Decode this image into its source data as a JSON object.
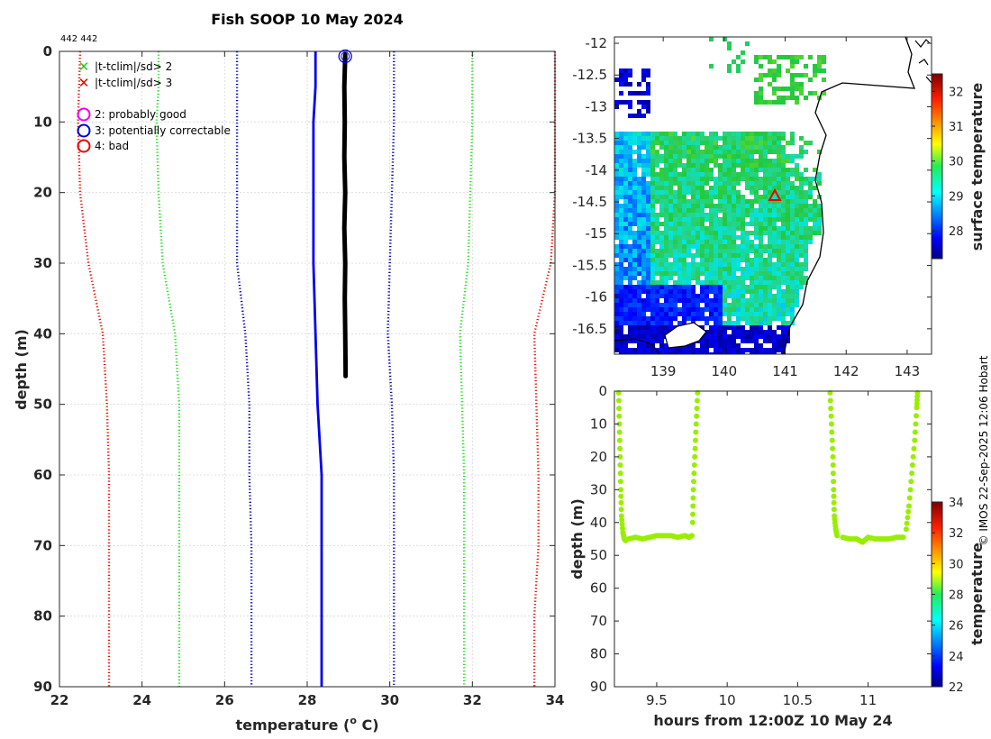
{
  "chart_data": [
    {
      "type": "line",
      "title": "Fish SOOP 10 May 2024",
      "id_label": "442 442",
      "xlabel": "temperature (",
      "xlabel_sup": "o",
      "xlabel_unit": " C)",
      "ylabel": "depth (m)",
      "xlim": [
        22,
        34
      ],
      "ylim": [
        90,
        0
      ],
      "xticks": [
        22,
        24,
        26,
        28,
        30,
        32,
        34
      ],
      "yticks": [
        0,
        10,
        20,
        30,
        40,
        50,
        60,
        70,
        80,
        90
      ],
      "legend": [
        {
          "label": "|t-tclim|/sd> 2",
          "marker": "x",
          "color": "#22cc22"
        },
        {
          "label": "|t-tclim|/sd> 3",
          "marker": "x",
          "color": "#dd0000"
        },
        {
          "label": "2: probably good",
          "marker": "o",
          "color": "#ee00ee"
        },
        {
          "label": "3: potentially correctable",
          "marker": "o",
          "color": "#0000dd"
        },
        {
          "label": "4: bad",
          "marker": "o",
          "color": "#ee0000"
        }
      ],
      "series": [
        {
          "name": "clim -3sd",
          "style": "dotted",
          "color": "#dd1100",
          "points": [
            [
              22.5,
              0
            ],
            [
              22.45,
              10
            ],
            [
              22.5,
              20
            ],
            [
              22.7,
              30
            ],
            [
              23.05,
              40
            ],
            [
              23.15,
              50
            ],
            [
              23.2,
              60
            ],
            [
              23.2,
              70
            ],
            [
              23.2,
              80
            ],
            [
              23.2,
              90
            ]
          ]
        },
        {
          "name": "clim -2sd",
          "style": "dotted",
          "color": "#22dd22",
          "points": [
            [
              24.4,
              0
            ],
            [
              24.4,
              5
            ],
            [
              24.35,
              10
            ],
            [
              24.4,
              20
            ],
            [
              24.5,
              30
            ],
            [
              24.8,
              40
            ],
            [
              24.9,
              50
            ],
            [
              24.9,
              60
            ],
            [
              24.9,
              70
            ],
            [
              24.9,
              80
            ],
            [
              24.9,
              90
            ]
          ]
        },
        {
          "name": "clim -1sd",
          "style": "dotted",
          "color": "#0000aa",
          "points": [
            [
              26.3,
              0
            ],
            [
              26.3,
              10
            ],
            [
              26.3,
              20
            ],
            [
              26.3,
              30
            ],
            [
              26.5,
              40
            ],
            [
              26.6,
              50
            ],
            [
              26.6,
              60
            ],
            [
              26.65,
              70
            ],
            [
              26.65,
              80
            ],
            [
              26.65,
              90
            ]
          ]
        },
        {
          "name": "clim mean",
          "style": "solid",
          "color": "#0000ee",
          "points": [
            [
              28.2,
              0
            ],
            [
              28.2,
              5
            ],
            [
              28.15,
              10
            ],
            [
              28.15,
              20
            ],
            [
              28.15,
              30
            ],
            [
              28.2,
              40
            ],
            [
              28.25,
              50
            ],
            [
              28.35,
              60
            ],
            [
              28.35,
              70
            ],
            [
              28.35,
              80
            ],
            [
              28.35,
              90
            ]
          ]
        },
        {
          "name": "clim +1sd",
          "style": "dotted",
          "color": "#0000aa",
          "points": [
            [
              30.1,
              0
            ],
            [
              30.1,
              10
            ],
            [
              30.05,
              20
            ],
            [
              30.0,
              30
            ],
            [
              29.95,
              40
            ],
            [
              30.05,
              50
            ],
            [
              30.1,
              60
            ],
            [
              30.1,
              70
            ],
            [
              30.1,
              80
            ],
            [
              30.1,
              90
            ]
          ]
        },
        {
          "name": "clim +2sd",
          "style": "dotted",
          "color": "#22dd22",
          "points": [
            [
              32.0,
              0
            ],
            [
              32.0,
              10
            ],
            [
              31.95,
              20
            ],
            [
              31.9,
              30
            ],
            [
              31.7,
              40
            ],
            [
              31.75,
              50
            ],
            [
              31.8,
              60
            ],
            [
              31.8,
              70
            ],
            [
              31.8,
              80
            ],
            [
              31.8,
              90
            ]
          ]
        },
        {
          "name": "clim +3sd",
          "style": "dotted",
          "color": "#dd1100",
          "points": [
            [
              34.0,
              0
            ],
            [
              34.0,
              10
            ],
            [
              34.0,
              20
            ],
            [
              33.9,
              30
            ],
            [
              33.5,
              40
            ],
            [
              33.55,
              50
            ],
            [
              33.6,
              60
            ],
            [
              33.6,
              70
            ],
            [
              33.5,
              80
            ],
            [
              33.5,
              90
            ]
          ]
        },
        {
          "name": "profile",
          "style": "thick",
          "color": "#000000",
          "points": [
            [
              28.92,
              0.5
            ],
            [
              28.9,
              5
            ],
            [
              28.91,
              10
            ],
            [
              28.9,
              15
            ],
            [
              28.92,
              20
            ],
            [
              28.9,
              25
            ],
            [
              28.92,
              30
            ],
            [
              28.91,
              35
            ],
            [
              28.92,
              40
            ],
            [
              28.93,
              45
            ],
            [
              28.93,
              46
            ]
          ]
        }
      ],
      "flag_marker": {
        "x": 28.92,
        "y": 0.7,
        "flag": "3: potentially correctable"
      }
    },
    {
      "type": "heatmap",
      "name": "surface temperature map",
      "xlim": [
        138.2,
        143.4
      ],
      "ylim": [
        -16.9,
        -11.9
      ],
      "xticks": [
        139,
        140,
        141,
        142,
        143
      ],
      "yticks": [
        -12,
        -12.5,
        -13,
        -13.5,
        -14,
        -14.5,
        -15,
        -15.5,
        -16,
        -16.5
      ],
      "ytick_labels": [
        "-12",
        "-12.5",
        "-13",
        "-13.5",
        "-14",
        "-14.5",
        "-15",
        "-15.5",
        "-16",
        "-16.5"
      ],
      "colorbar": {
        "label": "surface temperature",
        "min": 27.2,
        "max": 32.5,
        "ticks": [
          28,
          29,
          30,
          31,
          32
        ]
      },
      "station_marker": {
        "lon": 140.83,
        "lat": -14.4,
        "marker": "triangle",
        "color": "#ee0000"
      }
    },
    {
      "type": "scatter",
      "xlabel": "hours from 12:00Z 10 May 24",
      "ylabel": "depth (m)",
      "xlim": [
        9.2,
        11.45
      ],
      "ylim": [
        90,
        0
      ],
      "xticks": [
        9.5,
        10,
        10.5,
        11
      ],
      "xtick_labels": [
        "9.5",
        "10",
        "10.5",
        "11"
      ],
      "yticks": [
        0,
        10,
        20,
        30,
        40,
        50,
        60,
        70,
        80,
        90
      ],
      "colorbar": {
        "label": "temperature",
        "min": 22,
        "max": 34,
        "ticks": [
          22,
          24,
          26,
          28,
          30,
          32,
          34
        ]
      },
      "point_color": "#99ee00",
      "segments": [
        {
          "desc": "descent 1",
          "points": [
            [
              9.23,
              0.5
            ],
            [
              9.235,
              10
            ],
            [
              9.24,
              20
            ],
            [
              9.245,
              30
            ],
            [
              9.25,
              38
            ],
            [
              9.26,
              43
            ],
            [
              9.27,
              45
            ],
            [
              9.28,
              45.5
            ]
          ]
        },
        {
          "desc": "bottom 1",
          "points": [
            [
              9.3,
              45
            ],
            [
              9.35,
              44.5
            ],
            [
              9.4,
              45
            ],
            [
              9.45,
              44.5
            ],
            [
              9.5,
              44
            ],
            [
              9.55,
              44
            ],
            [
              9.6,
              44
            ],
            [
              9.65,
              44.5
            ],
            [
              9.7,
              44
            ],
            [
              9.73,
              44.5
            ],
            [
              9.75,
              44
            ]
          ]
        },
        {
          "desc": "ascent 1",
          "points": [
            [
              9.755,
              40
            ],
            [
              9.76,
              30
            ],
            [
              9.77,
              20
            ],
            [
              9.78,
              10
            ],
            [
              9.79,
              0.5
            ]
          ]
        },
        {
          "desc": "descent 2",
          "points": [
            [
              10.73,
              0.5
            ],
            [
              10.74,
              10
            ],
            [
              10.75,
              20
            ],
            [
              10.755,
              30
            ],
            [
              10.76,
              38
            ],
            [
              10.77,
              42
            ],
            [
              10.78,
              44
            ]
          ]
        },
        {
          "desc": "bottom 2",
          "points": [
            [
              10.82,
              44.5
            ],
            [
              10.87,
              45
            ],
            [
              10.92,
              45
            ],
            [
              10.96,
              46
            ],
            [
              11.0,
              44.5
            ],
            [
              11.05,
              45
            ],
            [
              11.1,
              45
            ],
            [
              11.15,
              45
            ],
            [
              11.2,
              44.5
            ],
            [
              11.25,
              44.5
            ]
          ]
        },
        {
          "desc": "ascent 2",
          "points": [
            [
              11.27,
              42
            ],
            [
              11.29,
              35
            ],
            [
              11.31,
              25
            ],
            [
              11.33,
              15
            ],
            [
              11.345,
              5
            ],
            [
              11.35,
              0.5
            ]
          ]
        }
      ]
    }
  ],
  "footer": {
    "credit": "© IMOS 22-Sep-2025 12:06 Hobart"
  }
}
